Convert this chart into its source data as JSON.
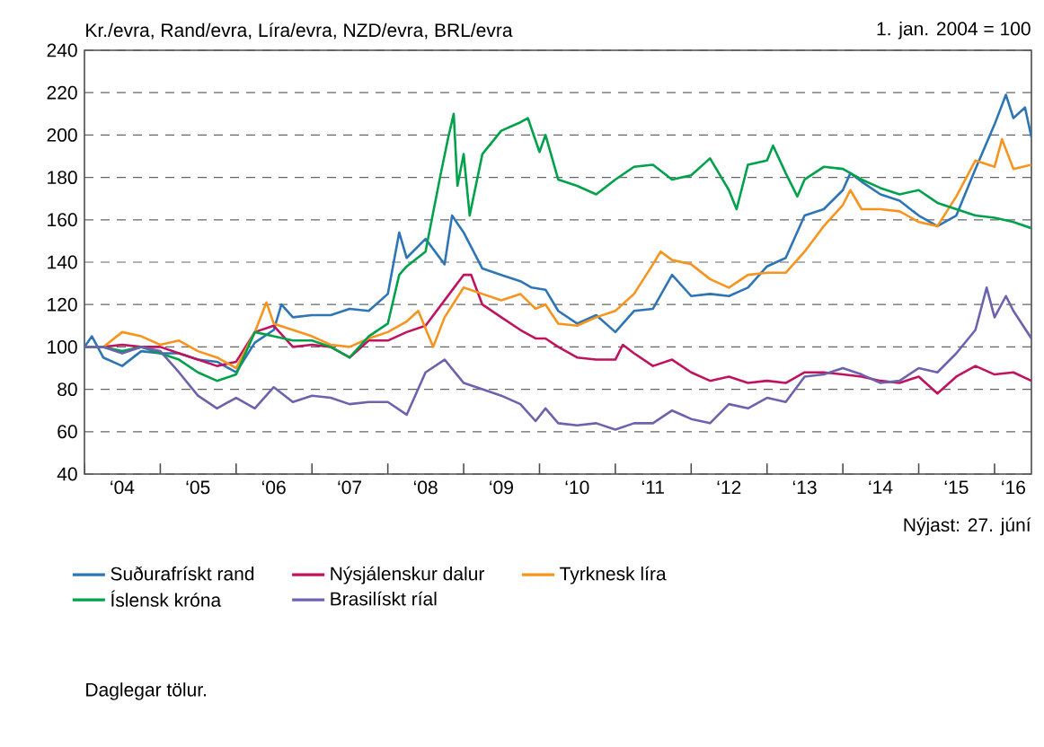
{
  "chart_data": {
    "type": "line",
    "ylabel": "Kr./evra, Rand/evra, Líra/evra, NZD/evra, BRL/evra",
    "annotations": [
      "1. jan. 2004 = 100",
      "Nýjast: 27. júní",
      "Daglegar tölur."
    ],
    "xlim": [
      "2004-01-01",
      "2016-06-27"
    ],
    "ylim": [
      40,
      240
    ],
    "yticks": [
      40,
      60,
      80,
      100,
      120,
      140,
      160,
      180,
      200,
      220,
      240
    ],
    "xticks": [
      {
        "value": "2004-01-01",
        "label": null
      },
      {
        "value": "2004-07-01",
        "label": "‘04"
      },
      {
        "value": "2005-01-01",
        "label": null
      },
      {
        "value": "2005-07-01",
        "label": "‘05"
      },
      {
        "value": "2006-01-01",
        "label": null
      },
      {
        "value": "2006-07-01",
        "label": "‘06"
      },
      {
        "value": "2007-01-01",
        "label": null
      },
      {
        "value": "2007-07-01",
        "label": "‘07"
      },
      {
        "value": "2008-01-01",
        "label": null
      },
      {
        "value": "2008-07-01",
        "label": "‘08"
      },
      {
        "value": "2009-01-01",
        "label": null
      },
      {
        "value": "2009-07-01",
        "label": "‘09"
      },
      {
        "value": "2010-01-01",
        "label": null
      },
      {
        "value": "2010-07-01",
        "label": "‘10"
      },
      {
        "value": "2011-01-01",
        "label": null
      },
      {
        "value": "2011-07-01",
        "label": "‘11"
      },
      {
        "value": "2012-01-01",
        "label": null
      },
      {
        "value": "2012-07-01",
        "label": "‘12"
      },
      {
        "value": "2013-01-01",
        "label": null
      },
      {
        "value": "2013-07-01",
        "label": "‘13"
      },
      {
        "value": "2014-01-01",
        "label": null
      },
      {
        "value": "2014-07-01",
        "label": "‘14"
      },
      {
        "value": "2015-01-01",
        "label": null
      },
      {
        "value": "2015-07-01",
        "label": "‘15"
      },
      {
        "value": "2016-01-01",
        "label": null
      },
      {
        "value": "2016-04-01",
        "label": "‘16"
      }
    ],
    "grid": "y",
    "legend": "bottom",
    "marker": "none",
    "line_style": "solid",
    "series": [
      {
        "name": "Suðurafrískt rand",
        "color": "#2e75b6",
        "x": [
          "2004-01-01",
          "2004-02-06",
          "2004-04-01",
          "2004-07-01",
          "2004-10-01",
          "2005-01-01",
          "2005-04-01",
          "2005-07-01",
          "2005-10-01",
          "2006-01-01",
          "2006-04-01",
          "2006-07-01",
          "2006-08-07",
          "2006-10-01",
          "2007-01-01",
          "2007-04-01",
          "2007-07-01",
          "2007-10-01",
          "2008-01-01",
          "2008-02-25",
          "2008-04-01",
          "2008-07-01",
          "2008-10-01",
          "2008-11-06",
          "2009-01-01",
          "2009-04-01",
          "2009-07-01",
          "2009-10-01",
          "2009-11-24",
          "2010-01-30",
          "2010-04-01",
          "2010-07-01",
          "2010-10-01",
          "2011-01-01",
          "2011-04-01",
          "2011-07-01",
          "2011-10-01",
          "2012-01-01",
          "2012-04-01",
          "2012-07-01",
          "2012-10-01",
          "2013-01-01",
          "2013-04-01",
          "2013-07-01",
          "2013-10-01",
          "2014-01-01",
          "2014-02-06",
          "2014-04-01",
          "2014-07-01",
          "2014-10-01",
          "2015-01-01",
          "2015-04-01",
          "2015-07-01",
          "2015-10-01",
          "2016-01-01",
          "2016-02-25",
          "2016-04-01",
          "2016-05-27",
          "2016-06-27"
        ],
        "values": [
          100,
          105,
          95,
          91,
          98,
          97,
          97,
          94,
          93,
          88,
          102,
          108,
          120,
          114,
          115,
          115,
          118,
          117,
          125,
          154,
          142,
          151,
          139,
          162,
          154,
          137,
          134,
          131,
          128,
          127,
          117,
          111,
          115,
          107,
          117,
          118,
          134,
          124,
          125,
          124,
          128,
          138,
          142,
          162,
          165,
          174,
          182,
          178,
          172,
          169,
          162,
          157,
          162,
          184,
          205,
          219,
          208,
          213,
          199
        ]
      },
      {
        "name": "Nýsjálenskur dalur",
        "color": "#c0135f",
        "x": [
          "2004-01-01",
          "2004-04-01",
          "2004-07-01",
          "2004-10-01",
          "2005-01-01",
          "2005-04-01",
          "2005-07-01",
          "2005-10-01",
          "2006-01-01",
          "2006-04-01",
          "2006-07-01",
          "2006-10-01",
          "2007-01-01",
          "2007-04-01",
          "2007-07-01",
          "2007-10-01",
          "2008-01-01",
          "2008-04-01",
          "2008-07-01",
          "2008-10-01",
          "2009-01-01",
          "2009-02-06",
          "2009-04-01",
          "2009-07-01",
          "2009-10-01",
          "2009-12-13",
          "2010-01-30",
          "2010-04-01",
          "2010-07-01",
          "2010-10-01",
          "2011-01-01",
          "2011-02-06",
          "2011-04-01",
          "2011-07-01",
          "2011-10-01",
          "2012-01-01",
          "2012-04-01",
          "2012-07-01",
          "2012-10-01",
          "2013-01-01",
          "2013-04-01",
          "2013-07-01",
          "2013-10-01",
          "2014-01-01",
          "2014-04-01",
          "2014-07-01",
          "2014-10-01",
          "2015-01-01",
          "2015-04-01",
          "2015-07-01",
          "2015-10-01",
          "2016-01-01",
          "2016-04-01",
          "2016-06-27"
        ],
        "values": [
          100,
          100,
          101,
          100,
          100,
          97,
          94,
          91,
          93,
          107,
          110,
          100,
          101,
          100,
          95,
          103,
          103,
          107,
          110,
          122,
          134,
          134,
          120,
          114,
          108,
          104,
          104,
          100,
          95,
          94,
          94,
          101,
          97,
          91,
          94,
          88,
          84,
          86,
          83,
          84,
          83,
          88,
          88,
          87,
          86,
          84,
          83,
          86,
          78,
          86,
          91,
          87,
          88,
          84
        ]
      },
      {
        "name": "Tyrknesk líra",
        "color": "#f7941d",
        "x": [
          "2004-01-01",
          "2004-04-01",
          "2004-07-01",
          "2004-10-01",
          "2005-01-01",
          "2005-04-01",
          "2005-07-01",
          "2005-10-01",
          "2006-01-01",
          "2006-04-01",
          "2006-05-27",
          "2006-07-01",
          "2006-10-01",
          "2007-01-01",
          "2007-04-01",
          "2007-07-01",
          "2007-10-01",
          "2008-01-01",
          "2008-04-01",
          "2008-05-27",
          "2008-08-07",
          "2008-10-01",
          "2009-01-01",
          "2009-04-01",
          "2009-07-01",
          "2009-10-01",
          "2009-12-13",
          "2010-01-30",
          "2010-04-01",
          "2010-07-01",
          "2010-10-01",
          "2011-01-01",
          "2011-04-01",
          "2011-07-01",
          "2011-08-07",
          "2011-10-01",
          "2012-01-01",
          "2012-04-01",
          "2012-07-01",
          "2012-10-01",
          "2013-01-01",
          "2013-04-01",
          "2013-07-01",
          "2013-10-01",
          "2014-01-01",
          "2014-02-06",
          "2014-04-01",
          "2014-07-01",
          "2014-10-01",
          "2015-01-01",
          "2015-04-01",
          "2015-07-01",
          "2015-10-01",
          "2016-01-01",
          "2016-02-06",
          "2016-04-01",
          "2016-06-27"
        ],
        "values": [
          100,
          100,
          107,
          105,
          101,
          103,
          98,
          95,
          90,
          107,
          121,
          111,
          108,
          105,
          101,
          100,
          104,
          107,
          112,
          117,
          100,
          114,
          128,
          125,
          122,
          125,
          118,
          120,
          111,
          110,
          114,
          117,
          125,
          139,
          145,
          141,
          139,
          132,
          128,
          134,
          135,
          135,
          145,
          157,
          167,
          174,
          165,
          165,
          164,
          159,
          157,
          171,
          188,
          185,
          198,
          184,
          186
        ]
      },
      {
        "name": "Íslensk króna",
        "color": "#00a14b",
        "x": [
          "2004-01-01",
          "2004-04-01",
          "2004-07-01",
          "2004-10-01",
          "2005-01-01",
          "2005-04-01",
          "2005-07-01",
          "2005-10-01",
          "2006-01-01",
          "2006-04-01",
          "2006-07-01",
          "2006-10-01",
          "2007-01-01",
          "2007-04-01",
          "2007-07-01",
          "2007-10-01",
          "2008-01-01",
          "2008-02-25",
          "2008-04-01",
          "2008-07-01",
          "2008-09-13",
          "2008-10-19",
          "2008-11-14",
          "2008-12-02",
          "2009-01-01",
          "2009-01-30",
          "2009-04-01",
          "2009-07-01",
          "2009-10-01",
          "2009-11-06",
          "2010-01-01",
          "2010-01-30",
          "2010-04-01",
          "2010-07-01",
          "2010-10-01",
          "2011-01-01",
          "2011-04-01",
          "2011-07-01",
          "2011-10-01",
          "2012-01-01",
          "2012-04-01",
          "2012-07-01",
          "2012-08-07",
          "2012-10-01",
          "2013-01-01",
          "2013-01-30",
          "2013-04-01",
          "2013-05-27",
          "2013-07-01",
          "2013-10-01",
          "2014-01-01",
          "2014-04-01",
          "2014-07-01",
          "2014-10-01",
          "2015-01-01",
          "2015-04-01",
          "2015-07-01",
          "2015-10-01",
          "2016-01-01",
          "2016-04-01",
          "2016-06-27"
        ],
        "values": [
          100,
          100,
          98,
          100,
          97,
          94,
          88,
          84,
          87,
          107,
          105,
          103,
          103,
          100,
          95,
          105,
          111,
          134,
          138,
          145,
          182,
          199,
          210,
          176,
          191,
          162,
          191,
          202,
          206,
          208,
          192,
          200,
          179,
          176,
          172,
          179,
          185,
          186,
          179,
          181,
          189,
          174,
          165,
          186,
          188,
          195,
          182,
          171,
          179,
          185,
          184,
          179,
          175,
          172,
          174,
          168,
          165,
          162,
          161,
          159,
          156
        ]
      },
      {
        "name": "Brasilískt ríal",
        "color": "#6b63ad",
        "x": [
          "2004-01-01",
          "2004-04-01",
          "2004-07-01",
          "2004-10-01",
          "2005-01-01",
          "2005-04-01",
          "2005-07-01",
          "2005-10-01",
          "2006-01-01",
          "2006-04-01",
          "2006-07-01",
          "2006-10-01",
          "2007-01-01",
          "2007-04-01",
          "2007-07-01",
          "2007-10-01",
          "2008-01-01",
          "2008-04-01",
          "2008-07-01",
          "2008-10-01",
          "2009-01-01",
          "2009-04-01",
          "2009-07-01",
          "2009-10-01",
          "2009-12-13",
          "2010-01-30",
          "2010-04-01",
          "2010-07-01",
          "2010-10-01",
          "2011-01-01",
          "2011-04-01",
          "2011-07-01",
          "2011-10-01",
          "2012-01-01",
          "2012-04-01",
          "2012-07-01",
          "2012-10-01",
          "2013-01-01",
          "2013-04-01",
          "2013-07-01",
          "2013-10-01",
          "2014-01-01",
          "2014-04-01",
          "2014-07-01",
          "2014-10-01",
          "2015-01-01",
          "2015-04-01",
          "2015-07-01",
          "2015-10-01",
          "2015-11-24",
          "2016-01-01",
          "2016-02-25",
          "2016-04-01",
          "2016-06-27"
        ],
        "values": [
          100,
          100,
          97,
          100,
          98,
          88,
          77,
          71,
          76,
          71,
          81,
          74,
          77,
          76,
          73,
          74,
          74,
          68,
          88,
          94,
          83,
          80,
          77,
          73,
          65,
          71,
          64,
          63,
          64,
          61,
          64,
          64,
          70,
          66,
          64,
          73,
          71,
          76,
          74,
          86,
          87,
          90,
          87,
          83,
          84,
          90,
          88,
          97,
          108,
          128,
          114,
          124,
          117,
          104
        ]
      }
    ]
  }
}
